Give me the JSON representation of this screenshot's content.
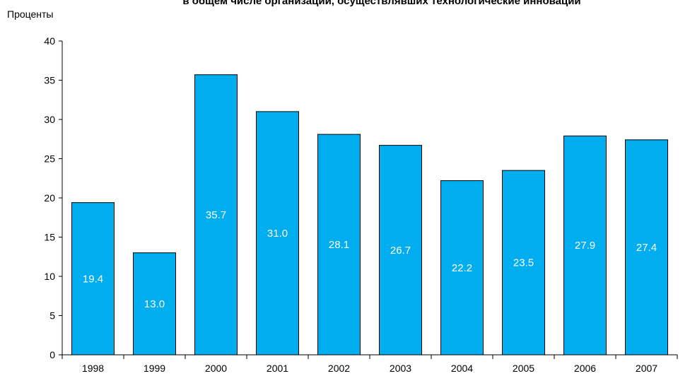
{
  "chart_data": {
    "type": "bar",
    "title": "в общем числе организаций, осуществлявших технологические инновации",
    "ylabel": "Проценты",
    "xlabel": "",
    "categories": [
      "1998",
      "1999",
      "2000",
      "2001",
      "2002",
      "2003",
      "2004",
      "2005",
      "2006",
      "2007"
    ],
    "values": [
      19.4,
      13.0,
      35.7,
      31.0,
      28.1,
      26.7,
      22.2,
      23.5,
      27.9,
      27.4
    ],
    "value_labels": [
      "19.4",
      "13.0",
      "35.7",
      "31.0",
      "28.1",
      "26.7",
      "22.2",
      "23.5",
      "27.9",
      "27.4"
    ],
    "ylim": [
      0,
      40
    ],
    "yticks": [
      "0",
      "5",
      "10",
      "15",
      "20",
      "25",
      "30",
      "35",
      "40"
    ],
    "grid": false,
    "legend": "none",
    "colors": {
      "bar": "#00aeef",
      "bar_edge": "#000000",
      "axis": "#000000",
      "label": "#ffffff"
    }
  }
}
